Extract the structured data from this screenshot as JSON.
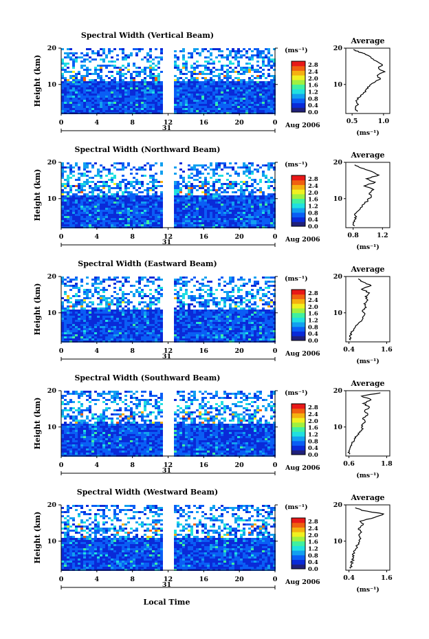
{
  "figure": {
    "shared": {
      "ylabel": "Height (km)",
      "xlabel": "Local Time",
      "day": "31",
      "month_year": "Aug 2006",
      "colorbar_unit": "(ms⁻¹)",
      "avg_title": "Average",
      "avg_xlabel": "(ms⁻¹)"
    }
  },
  "chart_data": [
    {
      "type": "heatmap",
      "title": "Spectral Width (Vertical Beam)",
      "ylabel": "Height (km)",
      "x_ticks": [
        "0",
        "4",
        "8",
        "12",
        "16",
        "20",
        "0"
      ],
      "x_range_hours": [
        0,
        24
      ],
      "y_ticks": [
        "10",
        "20"
      ],
      "y_range_km": [
        2,
        20
      ],
      "colorbar_ticks": [
        "0.0",
        "0.4",
        "0.8",
        "1.2",
        "1.6",
        "2.0",
        "2.4",
        "2.8"
      ],
      "colorbar_range": [
        0.0,
        2.8
      ],
      "data_gap_hours": [
        11.6,
        12.4
      ],
      "average_profile": {
        "title": "Average",
        "x_ticks": [
          "0.5",
          "1.0"
        ],
        "x_range": [
          0.4,
          1.1
        ],
        "y_ticks": [
          "10",
          "20"
        ],
        "xlabel": "(ms⁻¹)",
        "points": [
          [
            0.58,
            2.5
          ],
          [
            0.55,
            3.5
          ],
          [
            0.6,
            4.5
          ],
          [
            0.56,
            5.5
          ],
          [
            0.62,
            6.5
          ],
          [
            0.68,
            7.5
          ],
          [
            0.72,
            8.5
          ],
          [
            0.78,
            9.5
          ],
          [
            0.85,
            10.5
          ],
          [
            0.95,
            11.5
          ],
          [
            0.9,
            12.5
          ],
          [
            1.02,
            13.5
          ],
          [
            0.92,
            14.5
          ],
          [
            0.98,
            15.5
          ],
          [
            0.88,
            16.5
          ],
          [
            0.8,
            17.5
          ],
          [
            0.7,
            18.5
          ],
          [
            0.6,
            19.0
          ],
          [
            0.52,
            19.6
          ]
        ]
      }
    },
    {
      "type": "heatmap",
      "title": "Spectral Width (Northward Beam)",
      "ylabel": "Height (km)",
      "x_ticks": [
        "0",
        "4",
        "8",
        "12",
        "16",
        "20",
        "0"
      ],
      "x_range_hours": [
        0,
        24
      ],
      "y_ticks": [
        "10",
        "20"
      ],
      "y_range_km": [
        2,
        20
      ],
      "colorbar_ticks": [
        "0.0",
        "0.4",
        "0.8",
        "1.2",
        "1.6",
        "2.0",
        "2.4",
        "2.8"
      ],
      "colorbar_range": [
        0.0,
        2.8
      ],
      "data_gap_hours": [
        11.6,
        12.4
      ],
      "average_profile": {
        "title": "Average",
        "x_ticks": [
          "0.8",
          "1.2"
        ],
        "x_range": [
          0.7,
          1.3
        ],
        "y_ticks": [
          "10",
          "20"
        ],
        "xlabel": "(ms⁻¹)",
        "points": [
          [
            0.82,
            2.5
          ],
          [
            0.8,
            3.5
          ],
          [
            0.84,
            4.5
          ],
          [
            0.82,
            5.5
          ],
          [
            0.86,
            6.5
          ],
          [
            0.9,
            7.5
          ],
          [
            0.95,
            8.5
          ],
          [
            1.0,
            9.5
          ],
          [
            1.05,
            10.5
          ],
          [
            1.02,
            11.5
          ],
          [
            1.08,
            12.5
          ],
          [
            0.95,
            13.5
          ],
          [
            1.1,
            14.5
          ],
          [
            0.98,
            15.5
          ],
          [
            1.15,
            16.5
          ],
          [
            1.05,
            17.5
          ],
          [
            0.9,
            18.5
          ],
          [
            0.82,
            19.3
          ]
        ]
      }
    },
    {
      "type": "heatmap",
      "title": "Spectral Width (Eastward Beam)",
      "ylabel": "Height (km)",
      "x_ticks": [
        "0",
        "4",
        "8",
        "12",
        "16",
        "20",
        "0"
      ],
      "x_range_hours": [
        0,
        24
      ],
      "y_ticks": [
        "10",
        "20"
      ],
      "y_range_km": [
        2,
        20
      ],
      "colorbar_ticks": [
        "0.0",
        "0.4",
        "0.8",
        "1.2",
        "1.6",
        "2.0",
        "2.4",
        "2.8"
      ],
      "colorbar_range": [
        0.0,
        2.8
      ],
      "data_gap_hours": [
        11.6,
        12.4
      ],
      "average_profile": {
        "title": "Average",
        "x_ticks": [
          "0.4",
          "1.6"
        ],
        "x_range": [
          0.3,
          1.7
        ],
        "y_ticks": [
          "10",
          "20"
        ],
        "xlabel": "(ms⁻¹)",
        "points": [
          [
            0.45,
            2.5
          ],
          [
            0.42,
            3.5
          ],
          [
            0.48,
            4.5
          ],
          [
            0.55,
            5.5
          ],
          [
            0.62,
            6.5
          ],
          [
            0.75,
            7.5
          ],
          [
            0.85,
            8.5
          ],
          [
            0.9,
            9.5
          ],
          [
            0.82,
            10.5
          ],
          [
            0.95,
            11.5
          ],
          [
            0.88,
            12.5
          ],
          [
            1.0,
            13.5
          ],
          [
            0.92,
            14.5
          ],
          [
            1.05,
            15.5
          ],
          [
            0.8,
            16.5
          ],
          [
            1.1,
            17.5
          ],
          [
            0.85,
            18.5
          ],
          [
            0.7,
            19.4
          ]
        ]
      }
    },
    {
      "type": "heatmap",
      "title": "Spectral Width (Southward Beam)",
      "ylabel": "Height (km)",
      "x_ticks": [
        "0",
        "4",
        "8",
        "12",
        "16",
        "20",
        "0"
      ],
      "x_range_hours": [
        0,
        24
      ],
      "y_ticks": [
        "10",
        "20"
      ],
      "y_range_km": [
        2,
        20
      ],
      "colorbar_ticks": [
        "0.0",
        "0.4",
        "0.8",
        "1.2",
        "1.6",
        "2.0",
        "2.4",
        "2.8"
      ],
      "colorbar_range": [
        0.0,
        2.8
      ],
      "data_gap_hours": [
        11.6,
        12.4
      ],
      "average_profile": {
        "title": "Average",
        "x_ticks": [
          "0.6",
          "1.8"
        ],
        "x_range": [
          0.5,
          1.9
        ],
        "y_ticks": [
          "10",
          "20"
        ],
        "xlabel": "(ms⁻¹)",
        "points": [
          [
            0.62,
            2.5
          ],
          [
            0.6,
            3.5
          ],
          [
            0.65,
            4.5
          ],
          [
            0.7,
            5.5
          ],
          [
            0.78,
            6.5
          ],
          [
            0.85,
            7.5
          ],
          [
            0.95,
            8.5
          ],
          [
            1.05,
            9.5
          ],
          [
            1.0,
            10.5
          ],
          [
            1.12,
            11.5
          ],
          [
            1.05,
            12.5
          ],
          [
            1.2,
            13.5
          ],
          [
            1.1,
            14.5
          ],
          [
            1.25,
            15.5
          ],
          [
            1.05,
            16.5
          ],
          [
            1.3,
            17.5
          ],
          [
            1.0,
            18.5
          ],
          [
            1.6,
            19.4
          ]
        ]
      }
    },
    {
      "type": "heatmap",
      "title": "Spectral Width (Westward Beam)",
      "ylabel": "Height (km)",
      "x_ticks": [
        "0",
        "4",
        "8",
        "12",
        "16",
        "20",
        "0"
      ],
      "x_range_hours": [
        0,
        24
      ],
      "y_ticks": [
        "10",
        "20"
      ],
      "y_range_km": [
        2,
        20
      ],
      "colorbar_ticks": [
        "0.0",
        "0.4",
        "0.8",
        "1.2",
        "1.6",
        "2.0",
        "2.4",
        "2.8"
      ],
      "colorbar_range": [
        0.0,
        2.8
      ],
      "data_gap_hours": [
        11.6,
        12.4
      ],
      "average_profile": {
        "title": "Average",
        "x_ticks": [
          "0.4",
          "1.6"
        ],
        "x_range": [
          0.3,
          1.7
        ],
        "y_ticks": [
          "10",
          "20"
        ],
        "xlabel": "(ms⁻¹)",
        "points": [
          [
            0.45,
            2.5
          ],
          [
            0.48,
            3.5
          ],
          [
            0.5,
            4.5
          ],
          [
            0.55,
            5.5
          ],
          [
            0.52,
            6.5
          ],
          [
            0.6,
            7.5
          ],
          [
            0.65,
            8.5
          ],
          [
            0.7,
            9.5
          ],
          [
            0.75,
            10.5
          ],
          [
            0.72,
            11.5
          ],
          [
            0.8,
            12.5
          ],
          [
            0.7,
            13.5
          ],
          [
            0.85,
            14.5
          ],
          [
            0.75,
            15.5
          ],
          [
            1.2,
            16.5
          ],
          [
            1.5,
            17.5
          ],
          [
            0.8,
            18.5
          ],
          [
            0.6,
            19.2
          ]
        ]
      }
    }
  ],
  "colorbar_colors": [
    "#20207a",
    "#0a2ad8",
    "#0a5ef5",
    "#12a0f0",
    "#20e0e0",
    "#40f0a0",
    "#a0f040",
    "#f0f020",
    "#f5b010",
    "#f06010",
    "#e81818"
  ]
}
